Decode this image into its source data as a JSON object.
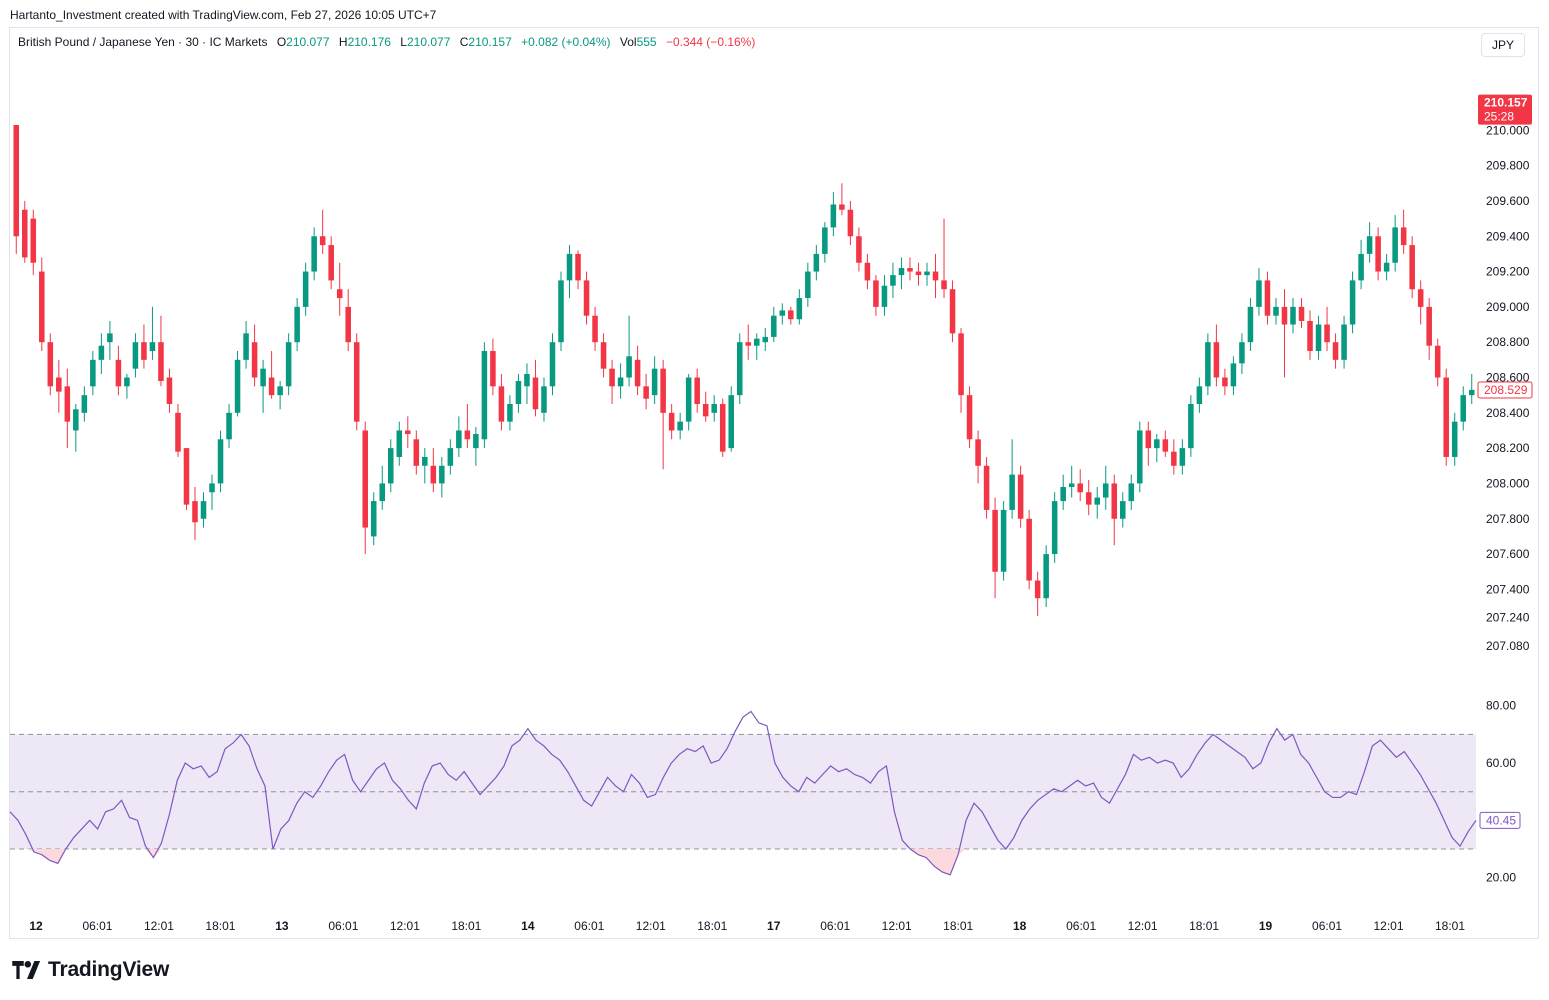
{
  "caption": "Hartanto_Investment created with TradingView.com, Feb 27, 2026 10:05 UTC+7",
  "legend": {
    "symbol": "British Pound / Japanese Yen · 30 · IC Markets",
    "open_label": "O",
    "open": "210.077",
    "high_label": "H",
    "high": "210.176",
    "low_label": "L",
    "low": "210.077",
    "close_label": "C",
    "close": "210.157",
    "change": "+0.082 (+0.04%)",
    "vol_label": "Vol",
    "vol": "555",
    "vol_change": "−0.344 (−0.16%)"
  },
  "currency_button": "JPY",
  "logo_text": "TradingView",
  "colors": {
    "up": "#089981",
    "down": "#f23645",
    "rsi_line": "#7e57c2",
    "rsi_band": "#ede7f6"
  },
  "chart_data": [
    {
      "type": "candlestick",
      "y_ticks": [
        "210.000",
        "209.800",
        "209.600",
        "209.400",
        "209.200",
        "209.000",
        "208.800",
        "208.600",
        "208.400",
        "208.200",
        "208.000",
        "207.800",
        "207.600",
        "207.400",
        "207.240",
        "207.080"
      ],
      "ylim": [
        207.0,
        210.2
      ],
      "x_ticks": [
        "12",
        "06:01",
        "12:01",
        "18:01",
        "13",
        "06:01",
        "12:01",
        "18:01",
        "14",
        "06:01",
        "12:01",
        "18:01",
        "17",
        "06:01",
        "12:01",
        "18:01",
        "18",
        "06:01",
        "12:01",
        "18:01",
        "19",
        "06:01",
        "12:01",
        "18:01"
      ],
      "x_bold_ticks": [
        "12",
        "13",
        "14",
        "17",
        "18",
        "19"
      ],
      "last_price": "210.157",
      "countdown": "25:28",
      "marker_price": "208.529",
      "ohlc": [
        [
          210.03,
          210.03,
          209.3,
          209.4
        ],
        [
          209.55,
          209.6,
          209.25,
          209.28
        ],
        [
          209.5,
          209.55,
          209.18,
          209.25
        ],
        [
          209.2,
          209.28,
          208.75,
          208.8
        ],
        [
          208.8,
          208.85,
          208.5,
          208.55
        ],
        [
          208.6,
          208.7,
          208.4,
          208.52
        ],
        [
          208.55,
          208.65,
          208.2,
          208.35
        ],
        [
          208.3,
          208.45,
          208.18,
          208.42
        ],
        [
          208.4,
          208.55,
          208.35,
          208.5
        ],
        [
          208.55,
          208.75,
          208.5,
          208.7
        ],
        [
          208.7,
          208.85,
          208.62,
          208.78
        ],
        [
          208.8,
          208.92,
          208.7,
          208.85
        ],
        [
          208.7,
          208.78,
          208.5,
          208.55
        ],
        [
          208.55,
          208.62,
          208.48,
          208.6
        ],
        [
          208.65,
          208.85,
          208.6,
          208.8
        ],
        [
          208.8,
          208.9,
          208.65,
          208.7
        ],
        [
          208.75,
          209.0,
          208.7,
          208.8
        ],
        [
          208.8,
          208.95,
          208.55,
          208.58
        ],
        [
          208.6,
          208.65,
          208.4,
          208.45
        ],
        [
          208.4,
          208.45,
          208.15,
          208.18
        ],
        [
          208.2,
          208.2,
          207.85,
          207.88
        ],
        [
          207.9,
          207.98,
          207.68,
          207.78
        ],
        [
          207.8,
          207.95,
          207.75,
          207.9
        ],
        [
          207.95,
          208.05,
          207.85,
          208.0
        ],
        [
          208.0,
          208.3,
          207.95,
          208.25
        ],
        [
          208.25,
          208.45,
          208.2,
          208.4
        ],
        [
          208.4,
          208.75,
          208.38,
          208.7
        ],
        [
          208.7,
          208.92,
          208.65,
          208.85
        ],
        [
          208.8,
          208.9,
          208.55,
          208.6
        ],
        [
          208.55,
          208.7,
          208.4,
          208.65
        ],
        [
          208.6,
          208.75,
          208.48,
          208.5
        ],
        [
          208.5,
          208.58,
          208.42,
          208.55
        ],
        [
          208.55,
          208.85,
          208.5,
          208.8
        ],
        [
          208.8,
          209.05,
          208.75,
          209.0
        ],
        [
          209.0,
          209.25,
          208.95,
          209.2
        ],
        [
          209.2,
          209.45,
          209.15,
          209.4
        ],
        [
          209.4,
          209.55,
          209.3,
          209.35
        ],
        [
          209.35,
          209.4,
          209.1,
          209.15
        ],
        [
          209.1,
          209.25,
          208.95,
          209.05
        ],
        [
          209.0,
          209.1,
          208.75,
          208.8
        ],
        [
          208.8,
          208.85,
          208.3,
          208.35
        ],
        [
          208.3,
          208.35,
          207.6,
          207.75
        ],
        [
          207.7,
          207.95,
          207.65,
          207.9
        ],
        [
          207.9,
          208.1,
          207.85,
          208.0
        ],
        [
          208.0,
          208.25,
          207.95,
          208.2
        ],
        [
          208.15,
          208.35,
          208.1,
          208.3
        ],
        [
          208.3,
          208.38,
          208.2,
          208.28
        ],
        [
          208.25,
          208.3,
          208.05,
          208.1
        ],
        [
          208.1,
          208.2,
          208.0,
          208.15
        ],
        [
          208.1,
          208.2,
          207.95,
          208.0
        ],
        [
          208.0,
          208.15,
          207.92,
          208.1
        ],
        [
          208.1,
          208.25,
          208.05,
          208.2
        ],
        [
          208.2,
          208.38,
          208.15,
          208.3
        ],
        [
          208.3,
          208.45,
          208.2,
          208.25
        ],
        [
          208.2,
          208.32,
          208.1,
          208.28
        ],
        [
          208.25,
          208.8,
          208.2,
          208.75
        ],
        [
          208.75,
          208.82,
          208.5,
          208.55
        ],
        [
          208.55,
          208.62,
          208.3,
          208.35
        ],
        [
          208.35,
          208.5,
          208.3,
          208.45
        ],
        [
          208.45,
          208.62,
          208.4,
          208.58
        ],
        [
          208.55,
          208.68,
          208.45,
          208.62
        ],
        [
          208.6,
          208.7,
          208.38,
          208.42
        ],
        [
          208.4,
          208.6,
          208.35,
          208.55
        ],
        [
          208.55,
          208.85,
          208.5,
          208.8
        ],
        [
          208.8,
          209.2,
          208.75,
          209.15
        ],
        [
          209.15,
          209.35,
          209.05,
          209.3
        ],
        [
          209.3,
          209.32,
          209.1,
          209.15
        ],
        [
          209.15,
          209.2,
          208.9,
          208.95
        ],
        [
          208.95,
          209.0,
          208.75,
          208.8
        ],
        [
          208.8,
          208.85,
          208.6,
          208.65
        ],
        [
          208.65,
          208.7,
          208.45,
          208.55
        ],
        [
          208.55,
          208.68,
          208.48,
          208.6
        ],
        [
          208.6,
          208.95,
          208.55,
          208.72
        ],
        [
          208.7,
          208.78,
          208.5,
          208.55
        ],
        [
          208.55,
          208.62,
          208.42,
          208.48
        ],
        [
          208.5,
          208.72,
          208.45,
          208.65
        ],
        [
          208.65,
          208.7,
          208.08,
          208.4
        ],
        [
          208.4,
          208.45,
          208.25,
          208.3
        ],
        [
          208.3,
          208.4,
          208.25,
          208.35
        ],
        [
          208.35,
          208.62,
          208.3,
          208.6
        ],
        [
          208.6,
          208.65,
          208.4,
          208.45
        ],
        [
          208.45,
          208.52,
          208.35,
          208.38
        ],
        [
          208.4,
          208.5,
          208.35,
          208.45
        ],
        [
          208.45,
          208.48,
          208.15,
          208.18
        ],
        [
          208.2,
          208.55,
          208.18,
          208.5
        ],
        [
          208.5,
          208.85,
          208.45,
          208.8
        ],
        [
          208.8,
          208.9,
          208.7,
          208.78
        ],
        [
          208.78,
          208.85,
          208.7,
          208.82
        ],
        [
          208.8,
          208.88,
          208.75,
          208.83
        ],
        [
          208.83,
          209.0,
          208.8,
          208.95
        ],
        [
          208.95,
          209.02,
          208.9,
          208.98
        ],
        [
          208.98,
          209.0,
          208.9,
          208.93
        ],
        [
          208.93,
          209.1,
          208.9,
          209.05
        ],
        [
          209.05,
          209.25,
          209.0,
          209.2
        ],
        [
          209.2,
          209.35,
          209.15,
          209.3
        ],
        [
          209.3,
          209.48,
          209.25,
          209.45
        ],
        [
          209.45,
          209.65,
          209.4,
          209.58
        ],
        [
          209.58,
          209.7,
          209.52,
          209.55
        ],
        [
          209.55,
          209.6,
          209.35,
          209.4
        ],
        [
          209.4,
          209.45,
          209.2,
          209.25
        ],
        [
          209.25,
          209.3,
          209.1,
          209.15
        ],
        [
          209.15,
          209.18,
          208.95,
          209.0
        ],
        [
          209.0,
          209.18,
          208.95,
          209.12
        ],
        [
          209.12,
          209.25,
          209.05,
          209.18
        ],
        [
          209.18,
          209.28,
          209.1,
          209.22
        ],
        [
          209.22,
          209.28,
          209.15,
          209.2
        ],
        [
          209.2,
          209.25,
          209.12,
          209.18
        ],
        [
          209.18,
          209.25,
          209.12,
          209.2
        ],
        [
          209.2,
          209.3,
          209.05,
          209.15
        ],
        [
          209.15,
          209.5,
          209.05,
          209.1
        ],
        [
          209.1,
          209.15,
          208.8,
          208.85
        ],
        [
          208.85,
          208.88,
          208.4,
          208.5
        ],
        [
          208.5,
          208.55,
          208.2,
          208.25
        ],
        [
          208.25,
          208.3,
          208.0,
          208.1
        ],
        [
          208.1,
          208.15,
          207.8,
          207.85
        ],
        [
          207.85,
          207.92,
          207.35,
          207.5
        ],
        [
          207.5,
          207.9,
          207.45,
          207.85
        ],
        [
          207.85,
          208.25,
          207.8,
          208.05
        ],
        [
          208.05,
          208.1,
          207.75,
          207.8
        ],
        [
          207.8,
          207.85,
          207.4,
          207.45
        ],
        [
          207.45,
          207.5,
          207.25,
          207.35
        ],
        [
          207.35,
          207.65,
          207.3,
          207.6
        ],
        [
          207.6,
          207.95,
          207.55,
          207.9
        ],
        [
          207.9,
          208.05,
          207.85,
          207.98
        ],
        [
          207.98,
          208.1,
          207.92,
          208.0
        ],
        [
          208.0,
          208.08,
          207.9,
          207.95
        ],
        [
          207.95,
          208.02,
          207.82,
          207.88
        ],
        [
          207.88,
          207.98,
          207.8,
          207.92
        ],
        [
          207.92,
          208.1,
          207.85,
          208.0
        ],
        [
          208.0,
          208.05,
          207.65,
          207.8
        ],
        [
          207.8,
          207.95,
          207.75,
          207.9
        ],
        [
          207.9,
          208.05,
          207.85,
          208.0
        ],
        [
          208.0,
          208.35,
          207.95,
          208.3
        ],
        [
          208.3,
          208.35,
          208.1,
          208.2
        ],
        [
          208.2,
          208.28,
          208.12,
          208.25
        ],
        [
          208.25,
          208.3,
          208.15,
          208.18
        ],
        [
          208.18,
          208.25,
          208.05,
          208.1
        ],
        [
          208.1,
          208.25,
          208.05,
          208.2
        ],
        [
          208.2,
          208.5,
          208.15,
          208.45
        ],
        [
          208.45,
          208.6,
          208.4,
          208.55
        ],
        [
          208.55,
          208.85,
          208.5,
          208.8
        ],
        [
          208.8,
          208.9,
          208.55,
          208.6
        ],
        [
          208.6,
          208.65,
          208.5,
          208.55
        ],
        [
          208.55,
          208.72,
          208.5,
          208.68
        ],
        [
          208.68,
          208.85,
          208.62,
          208.8
        ],
        [
          208.8,
          209.05,
          208.75,
          209.0
        ],
        [
          209.0,
          209.22,
          208.95,
          209.15
        ],
        [
          209.15,
          209.2,
          208.9,
          208.95
        ],
        [
          208.95,
          209.05,
          208.9,
          209.0
        ],
        [
          209.0,
          209.1,
          208.6,
          208.9
        ],
        [
          208.9,
          209.05,
          208.85,
          209.0
        ],
        [
          209.0,
          209.05,
          208.88,
          208.92
        ],
        [
          208.92,
          208.98,
          208.7,
          208.75
        ],
        [
          208.75,
          208.95,
          208.7,
          208.9
        ],
        [
          208.9,
          209.0,
          208.75,
          208.8
        ],
        [
          208.8,
          208.85,
          208.65,
          208.7
        ],
        [
          208.7,
          208.95,
          208.65,
          208.9
        ],
        [
          208.9,
          209.2,
          208.85,
          209.15
        ],
        [
          209.15,
          209.38,
          209.1,
          209.3
        ],
        [
          209.3,
          209.48,
          209.25,
          209.4
        ],
        [
          209.4,
          209.45,
          209.15,
          209.2
        ],
        [
          209.2,
          209.3,
          209.15,
          209.25
        ],
        [
          209.25,
          209.52,
          209.2,
          209.45
        ],
        [
          209.45,
          209.55,
          209.3,
          209.35
        ],
        [
          209.35,
          209.4,
          209.05,
          209.1
        ],
        [
          209.1,
          209.15,
          208.9,
          209.0
        ],
        [
          209.0,
          209.05,
          208.7,
          208.78
        ],
        [
          208.78,
          208.82,
          208.55,
          208.6
        ],
        [
          208.6,
          208.65,
          208.1,
          208.15
        ],
        [
          208.15,
          208.4,
          208.1,
          208.35
        ],
        [
          208.35,
          208.55,
          208.3,
          208.5
        ],
        [
          208.5,
          208.62,
          208.45,
          208.53
        ]
      ]
    },
    {
      "type": "line",
      "name": "RSI",
      "ylim": [
        15,
        82
      ],
      "y_ticks": [
        "80.00",
        "60.00",
        "20.00"
      ],
      "levels": [
        70,
        50,
        30
      ],
      "last_value": "40.45",
      "values": [
        43,
        40,
        35,
        29,
        28,
        26,
        25,
        30,
        34,
        37,
        40,
        37,
        43,
        44,
        47,
        41,
        40,
        31,
        27,
        32,
        42,
        54,
        60,
        58,
        59,
        55,
        57,
        65,
        67,
        70,
        66,
        58,
        52,
        30,
        37,
        40,
        46,
        50,
        48,
        52,
        57,
        61,
        63,
        54,
        50,
        54,
        58,
        60,
        54,
        51,
        47,
        44,
        53,
        59,
        60,
        56,
        54,
        57,
        53,
        49,
        52,
        55,
        59,
        66,
        68,
        72,
        68,
        66,
        63,
        61,
        57,
        52,
        47,
        45,
        50,
        55,
        52,
        50,
        56,
        53,
        48,
        49,
        55,
        60,
        63,
        65,
        64,
        66,
        60,
        61,
        65,
        71,
        76,
        78,
        74,
        73,
        60,
        55,
        52,
        50,
        55,
        53,
        56,
        59,
        57,
        58,
        56,
        55,
        53,
        57,
        59,
        43,
        33,
        30,
        28,
        27,
        24,
        22,
        21,
        28,
        40,
        46,
        43,
        38,
        33,
        30,
        34,
        40,
        44,
        47,
        49,
        51,
        50,
        52,
        54,
        52,
        53,
        48,
        46,
        51,
        56,
        63,
        61,
        62,
        60,
        61,
        60,
        55,
        58,
        63,
        67,
        70,
        68,
        66,
        64,
        62,
        58,
        60,
        67,
        72,
        68,
        70,
        63,
        60,
        55,
        50,
        48,
        48,
        50,
        49,
        57,
        66,
        68,
        65,
        62,
        64,
        60,
        56,
        51,
        46,
        40,
        34,
        31,
        36,
        40
      ]
    }
  ]
}
